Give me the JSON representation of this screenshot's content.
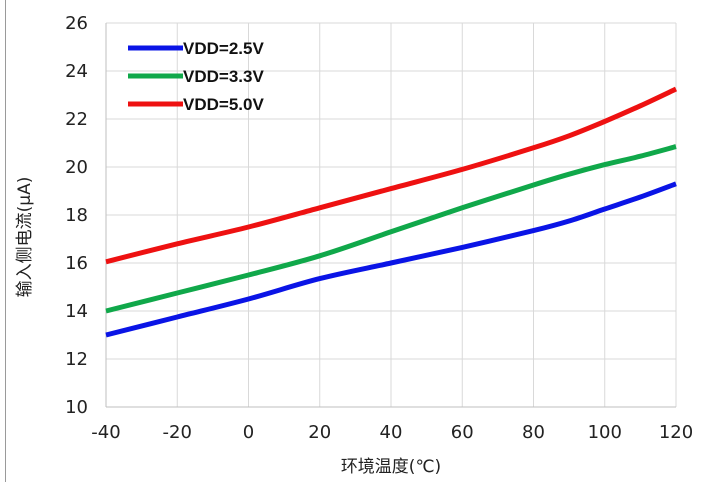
{
  "chart_data": {
    "type": "line",
    "xlabel": "环境温度(℃)",
    "ylabel": "输入侧电流(μA)",
    "xlim": [
      -40,
      120
    ],
    "ylim": [
      10,
      26
    ],
    "xticks": [
      -40,
      -20,
      0,
      20,
      40,
      60,
      80,
      100,
      120
    ],
    "yticks": [
      10,
      12,
      14,
      16,
      18,
      20,
      22,
      24,
      26
    ],
    "grid": true,
    "legend_position": "top-left",
    "series": [
      {
        "name": "VDD=2.5V",
        "color": "#0a14e6",
        "x": [
          -40,
          -20,
          0,
          20,
          40,
          60,
          80,
          90,
          100,
          110,
          120
        ],
        "y": [
          13.0,
          13.75,
          14.5,
          15.35,
          16.0,
          16.65,
          17.35,
          17.75,
          18.25,
          18.75,
          19.3
        ]
      },
      {
        "name": "VDD=3.3V",
        "color": "#10a84a",
        "x": [
          -40,
          -20,
          0,
          20,
          40,
          60,
          80,
          90,
          100,
          110,
          120
        ],
        "y": [
          14.0,
          14.75,
          15.5,
          16.3,
          17.3,
          18.3,
          19.25,
          19.7,
          20.1,
          20.45,
          20.85
        ]
      },
      {
        "name": "VDD=5.0V",
        "color": "#ee1111",
        "x": [
          -40,
          -20,
          0,
          20,
          40,
          60,
          80,
          90,
          100,
          110,
          120
        ],
        "y": [
          16.05,
          16.8,
          17.5,
          18.3,
          19.1,
          19.9,
          20.8,
          21.3,
          21.9,
          22.55,
          23.25
        ]
      }
    ]
  }
}
